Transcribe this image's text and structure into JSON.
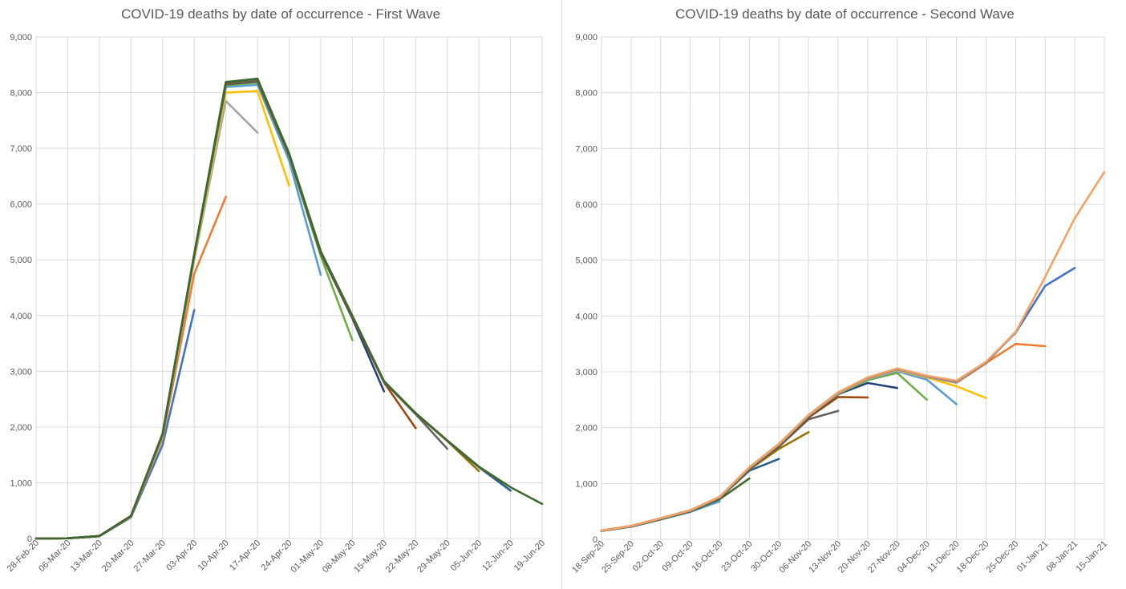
{
  "chart_data": [
    {
      "type": "line",
      "title": "COVID-19 deaths by date of occurrence - First Wave",
      "xlabel": "",
      "ylabel": "",
      "ylim": [
        0,
        9000
      ],
      "yticks": [
        "0",
        "1,000",
        "2,000",
        "3,000",
        "4,000",
        "5,000",
        "6,000",
        "7,000",
        "8,000",
        "9,000"
      ],
      "categories": [
        "28-Feb-20",
        "06-Mar-20",
        "13-Mar-20",
        "20-Mar-20",
        "27-Mar-20",
        "03-Apr-20",
        "10-Apr-20",
        "17-Apr-20",
        "24-Apr-20",
        "01-May-20",
        "08-May-20",
        "15-May-20",
        "22-May-20",
        "29-May-20",
        "05-Jun-20",
        "12-Jun-20",
        "19-Jun-20"
      ],
      "grid": true,
      "series": [
        {
          "color": "#4472c4",
          "values": [
            0,
            5,
            40,
            380,
            1680,
            4100,
            null,
            null,
            null,
            null,
            null,
            null,
            null,
            null,
            null,
            null,
            null
          ]
        },
        {
          "color": "#ed7d31",
          "values": [
            0,
            5,
            42,
            390,
            1800,
            4750,
            6130,
            null,
            null,
            null,
            null,
            null,
            null,
            null,
            null,
            null,
            null
          ]
        },
        {
          "color": "#a5a5a5",
          "values": [
            0,
            5,
            43,
            395,
            1840,
            5000,
            7850,
            7280,
            null,
            null,
            null,
            null,
            null,
            null,
            null,
            null,
            null
          ]
        },
        {
          "color": "#ffc000",
          "values": [
            0,
            5,
            44,
            398,
            1860,
            5050,
            8000,
            8030,
            6330,
            null,
            null,
            null,
            null,
            null,
            null,
            null,
            null
          ]
        },
        {
          "color": "#5b9bd5",
          "values": [
            0,
            5,
            45,
            400,
            1870,
            5080,
            8100,
            8140,
            6780,
            4730,
            null,
            null,
            null,
            null,
            null,
            null,
            null
          ]
        },
        {
          "color": "#70ad47",
          "values": [
            0,
            5,
            45,
            402,
            1875,
            5090,
            8130,
            8180,
            6850,
            5070,
            3560,
            null,
            null,
            null,
            null,
            null,
            null
          ]
        },
        {
          "color": "#264478",
          "values": [
            0,
            5,
            45,
            403,
            1878,
            5100,
            8150,
            8200,
            6880,
            5120,
            3950,
            2640,
            null,
            null,
            null,
            null,
            null
          ]
        },
        {
          "color": "#9e480e",
          "values": [
            0,
            5,
            45,
            404,
            1880,
            5100,
            8160,
            8210,
            6890,
            5130,
            3970,
            2800,
            1980,
            null,
            null,
            null,
            null
          ]
        },
        {
          "color": "#636363",
          "values": [
            0,
            5,
            45,
            404,
            1880,
            5100,
            8170,
            8220,
            6895,
            5140,
            3980,
            2810,
            2230,
            1610,
            null,
            null,
            null
          ]
        },
        {
          "color": "#997300",
          "values": [
            0,
            5,
            45,
            405,
            1880,
            5100,
            8175,
            8230,
            6900,
            5145,
            3985,
            2815,
            2240,
            1750,
            1210,
            null,
            null
          ]
        },
        {
          "color": "#255e91",
          "values": [
            0,
            5,
            45,
            405,
            1880,
            5100,
            8180,
            8240,
            6905,
            5150,
            3990,
            2820,
            2245,
            1755,
            1280,
            860,
            null
          ]
        },
        {
          "color": "#43682b",
          "values": [
            0,
            5,
            45,
            405,
            1880,
            5100,
            8190,
            8250,
            6910,
            5155,
            3995,
            2825,
            2250,
            1760,
            1290,
            920,
            620
          ]
        }
      ]
    },
    {
      "type": "line",
      "title": "COVID-19 deaths by date of occurrence - Second Wave",
      "xlabel": "",
      "ylabel": "",
      "ylim": [
        0,
        9000
      ],
      "yticks": [
        "0",
        "1,000",
        "2,000",
        "3,000",
        "4,000",
        "5,000",
        "6,000",
        "7,000",
        "8,000",
        "9,000"
      ],
      "categories": [
        "18-Sep-20",
        "25-Sep-20",
        "02-Oct-20",
        "09-Oct-20",
        "16-Oct-20",
        "23-Oct-20",
        "30-Oct-20",
        "06-Nov-20",
        "13-Nov-20",
        "20-Nov-20",
        "27-Nov-20",
        "04-Dec-20",
        "11-Dec-20",
        "18-Dec-20",
        "25-Dec-20",
        "01-Jan-21",
        "08-Jan-21",
        "15-Jan-21"
      ],
      "grid": true,
      "series": [
        {
          "color": "#5b9bd5",
          "values": [
            150,
            225,
            355,
            490,
            680,
            null,
            null,
            null,
            null,
            null,
            null,
            null,
            null,
            null,
            null,
            null,
            null,
            null
          ]
        },
        {
          "color": "#43682b",
          "values": [
            150,
            228,
            360,
            500,
            720,
            1090,
            null,
            null,
            null,
            null,
            null,
            null,
            null,
            null,
            null,
            null,
            null,
            null
          ]
        },
        {
          "color": "#255e91",
          "values": [
            152,
            230,
            362,
            505,
            740,
            1230,
            1440,
            null,
            null,
            null,
            null,
            null,
            null,
            null,
            null,
            null,
            null,
            null
          ]
        },
        {
          "color": "#997300",
          "values": [
            153,
            232,
            365,
            508,
            745,
            1250,
            1620,
            1920,
            null,
            null,
            null,
            null,
            null,
            null,
            null,
            null,
            null,
            null
          ]
        },
        {
          "color": "#636363",
          "values": [
            154,
            233,
            368,
            510,
            748,
            1260,
            1660,
            2150,
            2300,
            null,
            null,
            null,
            null,
            null,
            null,
            null,
            null,
            null
          ]
        },
        {
          "color": "#9e480e",
          "values": [
            155,
            234,
            370,
            512,
            750,
            1270,
            1680,
            2180,
            2550,
            2540,
            null,
            null,
            null,
            null,
            null,
            null,
            null,
            null
          ]
        },
        {
          "color": "#264478",
          "values": [
            155,
            235,
            372,
            514,
            752,
            1275,
            1690,
            2200,
            2600,
            2800,
            2710,
            null,
            null,
            null,
            null,
            null,
            null,
            null
          ]
        },
        {
          "color": "#70ad47",
          "values": [
            156,
            236,
            373,
            515,
            755,
            1280,
            1695,
            2210,
            2610,
            2850,
            2980,
            2500,
            null,
            null,
            null,
            null,
            null,
            null
          ]
        },
        {
          "color": "#5b9bd5",
          "values": [
            156,
            237,
            374,
            516,
            757,
            1282,
            1700,
            2215,
            2615,
            2870,
            3010,
            2860,
            2420,
            null,
            null,
            null,
            null,
            null
          ]
        },
        {
          "color": "#ffc000",
          "values": [
            157,
            238,
            375,
            517,
            758,
            1284,
            1702,
            2220,
            2620,
            2880,
            3030,
            2900,
            2740,
            2530,
            null,
            null,
            null,
            null
          ]
        },
        {
          "color": "#a5a5a5",
          "values": [
            157,
            238,
            376,
            518,
            759,
            1286,
            1705,
            2222,
            2625,
            2885,
            3040,
            2910,
            2800,
            3150,
            3720,
            null,
            null,
            null
          ]
        },
        {
          "color": "#ed7d31",
          "values": [
            158,
            239,
            377,
            519,
            760,
            1288,
            1708,
            2225,
            2630,
            2890,
            3050,
            2920,
            2820,
            3160,
            3500,
            3460,
            null,
            null
          ]
        },
        {
          "color": "#4472c4",
          "values": [
            158,
            239,
            377,
            519,
            760,
            1289,
            1709,
            2226,
            2631,
            2895,
            3055,
            2925,
            2830,
            3170,
            3700,
            4540,
            4860,
            null
          ]
        },
        {
          "color": "#f4a261",
          "values": [
            159,
            240,
            378,
            520,
            761,
            1290,
            1710,
            2228,
            2633,
            2900,
            3060,
            2930,
            2840,
            3180,
            3710,
            4700,
            5750,
            6580
          ]
        }
      ]
    }
  ]
}
